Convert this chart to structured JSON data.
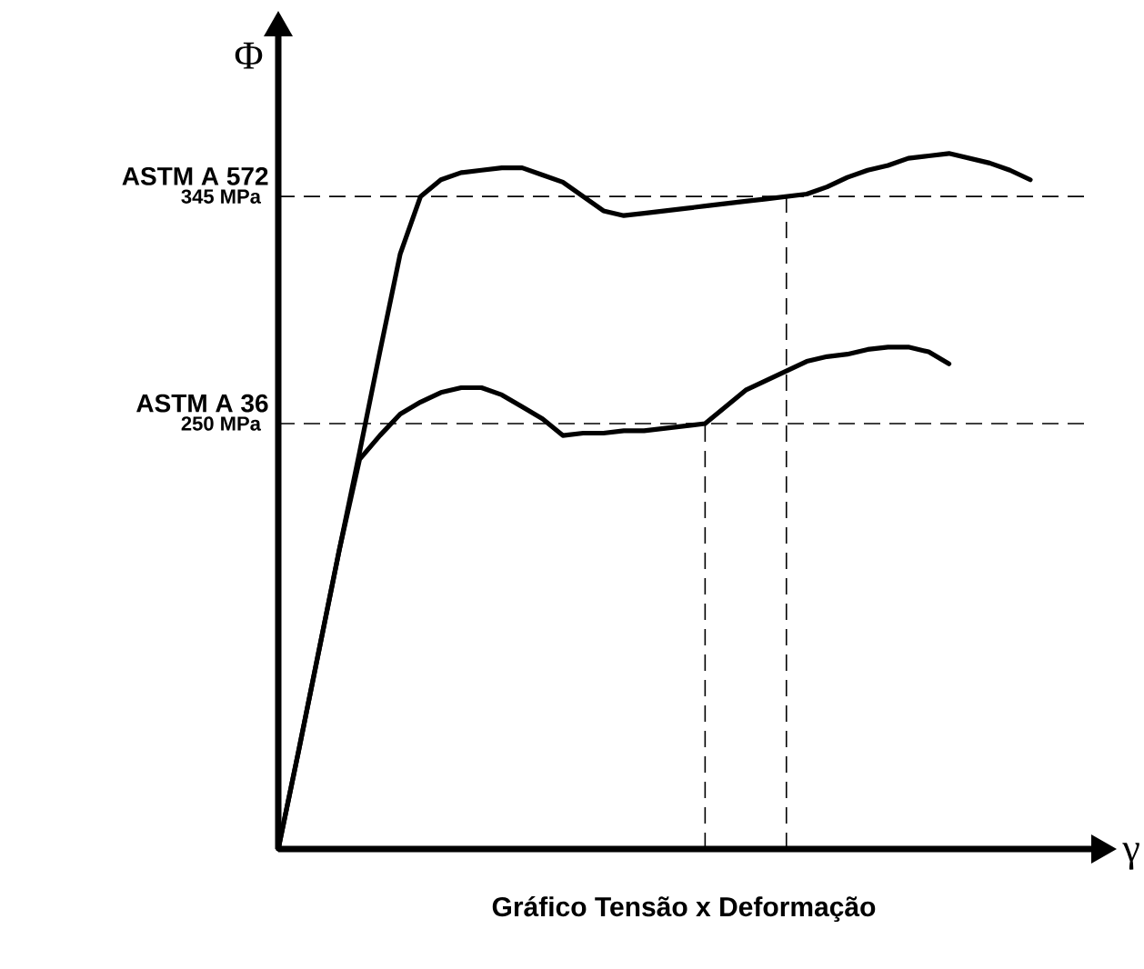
{
  "chart_data": {
    "type": "line",
    "title": "Gráfico Tensão x Deformação",
    "xlabel": "γ",
    "ylabel": "Φ",
    "categories": [
      null,
      null,
      null,
      null,
      null,
      null,
      null,
      null,
      null,
      null,
      null,
      null,
      null,
      null,
      null,
      null,
      null,
      null,
      null,
      null,
      null,
      null,
      null,
      null,
      null,
      null,
      null,
      null,
      null,
      null,
      null,
      null,
      null,
      null,
      null,
      null,
      null,
      null,
      null,
      null,
      null
    ],
    "series": [
      {
        "color": "#000000",
        "values": [
          72,
          113,
          155,
          197,
          238,
          280,
          321,
          345,
          352,
          355,
          356,
          357,
          357,
          354,
          351,
          345,
          339,
          337,
          338,
          339,
          340,
          341,
          342,
          343,
          344,
          345,
          346,
          349,
          353,
          356,
          358,
          361,
          362,
          363,
          361,
          359,
          356,
          352,
          null,
          null,
          null
        ]
      },
      {
        "color": "#000000",
        "values": [
          72,
          113,
          155,
          197,
          235,
          245,
          254,
          259,
          263,
          265,
          265,
          262,
          257,
          252,
          245,
          246,
          246,
          247,
          247,
          248,
          249,
          250,
          257,
          264,
          268,
          272,
          276,
          278,
          279,
          281,
          282,
          282,
          280,
          275,
          null,
          null,
          null,
          null,
          null,
          null,
          null
        ]
      }
    ],
    "ylim": [
      72,
      412
    ],
    "yticks": [
      {
        "value": 345,
        "label": "345 MPa"
      },
      {
        "value": 250,
        "label": "250 MPa"
      }
    ],
    "ref_lines": [
      {
        "axis": "y",
        "value": 345,
        "label": "ASTM A 572",
        "line_style": "dashed"
      },
      {
        "axis": "y",
        "value": 250,
        "label": "ASTM A 36",
        "line_style": "dashed"
      }
    ],
    "line_style": "solid"
  }
}
